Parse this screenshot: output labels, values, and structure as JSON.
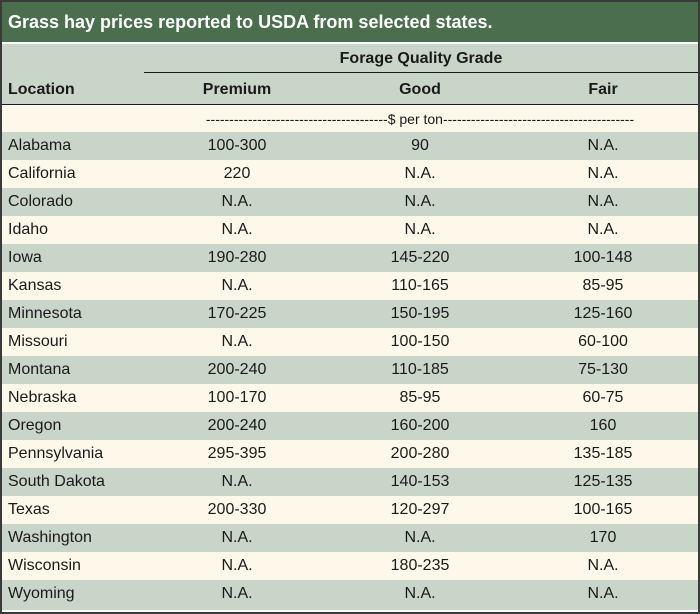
{
  "title": "Grass hay prices reported to USDA from selected states.",
  "header": {
    "group_label": "Forage Quality Grade",
    "location": "Location",
    "columns": [
      "Premium",
      "Good",
      "Fair"
    ]
  },
  "units": "---------------------------------------$ per ton-----------------------------------------",
  "colors": {
    "title_bg": "#4a6e4e",
    "band_green": "#c9d5c8",
    "band_cream": "#fdf8ea"
  },
  "rows": [
    {
      "location": "Alabama",
      "premium": "100-300",
      "good": "90",
      "fair": "N.A."
    },
    {
      "location": "California",
      "premium": "220",
      "good": "N.A.",
      "fair": "N.A."
    },
    {
      "location": "Colorado",
      "premium": "N.A.",
      "good": "N.A.",
      "fair": "N.A."
    },
    {
      "location": "Idaho",
      "premium": "N.A.",
      "good": "N.A.",
      "fair": "N.A."
    },
    {
      "location": "Iowa",
      "premium": "190-280",
      "good": "145-220",
      "fair": "100-148"
    },
    {
      "location": "Kansas",
      "premium": "N.A.",
      "good": "110-165",
      "fair": "85-95"
    },
    {
      "location": "Minnesota",
      "premium": "170-225",
      "good": "150-195",
      "fair": "125-160"
    },
    {
      "location": "Missouri",
      "premium": "N.A.",
      "good": "100-150",
      "fair": "60-100"
    },
    {
      "location": "Montana",
      "premium": "200-240",
      "good": "110-185",
      "fair": "75-130"
    },
    {
      "location": "Nebraska",
      "premium": "100-170",
      "good": "85-95",
      "fair": "60-75"
    },
    {
      "location": "Oregon",
      "premium": "200-240",
      "good": "160-200",
      "fair": "160"
    },
    {
      "location": "Pennsylvania",
      "premium": "295-395",
      "good": "200-280",
      "fair": "135-185"
    },
    {
      "location": "South Dakota",
      "premium": "N.A.",
      "good": "140-153",
      "fair": "125-135"
    },
    {
      "location": "Texas",
      "premium": "200-330",
      "good": "120-297",
      "fair": "100-165"
    },
    {
      "location": "Washington",
      "premium": "N.A.",
      "good": "N.A.",
      "fair": "170"
    },
    {
      "location": "Wisconsin",
      "premium": "N.A.",
      "good": "180-235",
      "fair": "N.A."
    },
    {
      "location": "Wyoming",
      "premium": "N.A.",
      "good": "N.A.",
      "fair": "N.A."
    }
  ]
}
